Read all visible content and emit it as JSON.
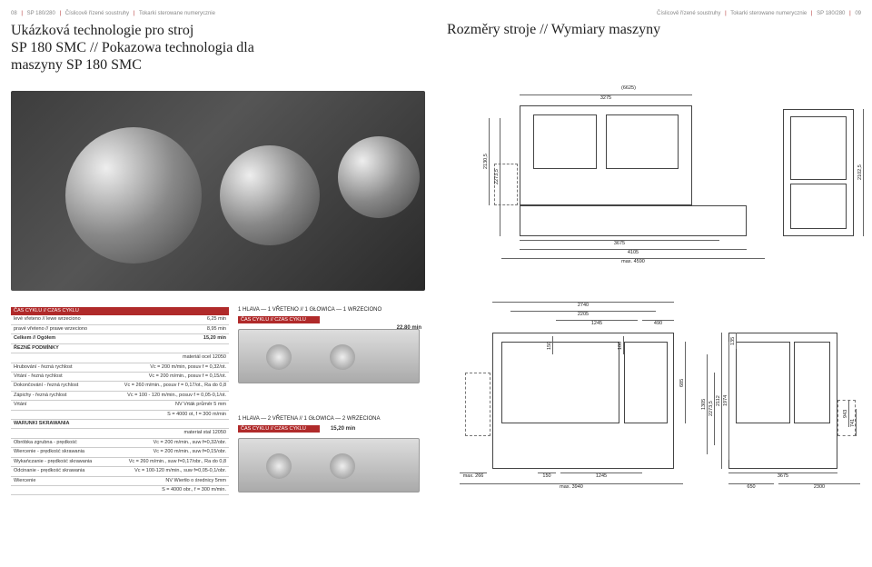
{
  "left": {
    "crumb": {
      "pg": "08",
      "prod": "SP 180/280",
      "sec1": "Číslicově řízené soustruhy",
      "sec2": "Tokarki sterowane numerycznie"
    },
    "title_l1": "Ukázková technologie pro stroj",
    "title_l2": "SP 180 SMC // Pokazowa technologia dla",
    "title_l3": "maszyny SP 180 SMC",
    "cycle_hdr": "ČAS CYKLU // CZAS CYKLU",
    "rows1": [
      {
        "l": "levé vřeteno // lewe wrzeciono",
        "r": "6,25 min"
      },
      {
        "l": "pravé vřeteno // prawe wrzeciono",
        "r": "8,95 min"
      },
      {
        "l": "Celkem // Ogółem",
        "r": "15,20 min",
        "bold": true
      }
    ],
    "cut_hdr": "ŘEZNÉ PODMÍNKY",
    "rows2": [
      {
        "l": "",
        "r": "materiál ocel 12050",
        "sub": true
      },
      {
        "l": "Hrubování - řezná rychlost",
        "r": "Vc = 200 m/min, posuv f = 0,32/ot."
      },
      {
        "l": "Vrtání - řezná rychlost",
        "r": "Vc = 200 m/min., posuv f = 0,15/ot."
      },
      {
        "l": "Dokončování - řezná rychlost",
        "r": "Vc = 260 m/min., posuv f = 0,17/ot., Ra do 0,8"
      },
      {
        "l": "Zápichy - řezná rychlost",
        "r": "Vc = 100 - 120 m/min., posuv f = 0,05-0,1/ot."
      },
      {
        "l": "Vrtání",
        "r": "NV Vrták průměr 5 mm"
      },
      {
        "l": "",
        "r": "S = 4000 ot, f = 300 m/min"
      }
    ],
    "war_hdr": "WARUNKI SKRAWANIA",
    "rows3": [
      {
        "l": "",
        "r": "materiał stal 12050",
        "sub": true
      },
      {
        "l": "Obróbka zgrubna - prędkość",
        "r": "Vc = 200 m/min., suw f=0,32/obr."
      },
      {
        "l": "Wiercenie - prędkość skrawania",
        "r": "Vc = 200 m/min., suw f=0,15/obr."
      },
      {
        "l": "Wykańczanie - prędkość skrawania",
        "r": "Vc = 260 m/min., suw f=0,17/obr., Ra do 0,8"
      },
      {
        "l": "Odcinanie - prędkość skrawania",
        "r": "Vc = 100-120 m/min., suw f=0,05-0,1/obr."
      },
      {
        "l": "Wiercenie",
        "r": "NV Wiertło o średnicy 5mm"
      },
      {
        "l": "",
        "r": "S = 4000 obr., f = 300 m/min."
      }
    ],
    "bar1": {
      "title": "1 HLAVA — 1 VŘETENO // 1 GŁOWICA — 1 WRZECIONO",
      "tag": "ČAS CYKLU // CZAS CYKLU",
      "time": "22,80 min"
    },
    "bar2": {
      "title": "1 HLAVA — 2 VŘETENA // 1 GŁOWICA — 2 WRZECIONA",
      "tag": "ČAS CYKLU // CZAS CYKLU",
      "time": "15,20 min"
    }
  },
  "right": {
    "crumb": {
      "sec1": "Číslicově řízené soustruhy",
      "sec2": "Tokarki sterowane numerycznie",
      "prod": "SP 180/280",
      "pg": "09"
    },
    "title": "Rozměry stroje // Wymiary maszyny",
    "top_dims": {
      "w_out": "(6625)",
      "w1": "3275",
      "h1": "2130,5",
      "h2": "2273,5",
      "b1": "3675",
      "b2": "4105",
      "b3": "max. 4590",
      "side": "2102,5"
    },
    "bot_dims": {
      "w1": "2740",
      "w2": "2205",
      "w3": "1245",
      "w4": "490",
      "v1": "150",
      "v2": "100",
      "v3": "685",
      "v4": "2112",
      "v5": "1974",
      "v6": "135",
      "v7": "1305",
      "v8": "943",
      "v9": "741",
      "v10": "2273,5",
      "b1": "max. 266",
      "b2": "max. 3940",
      "b3": "150",
      "b4": "1245",
      "b5": "3675",
      "b6": "650",
      "b7": "2300"
    }
  },
  "colors": {
    "accent": "#b02a2a"
  }
}
